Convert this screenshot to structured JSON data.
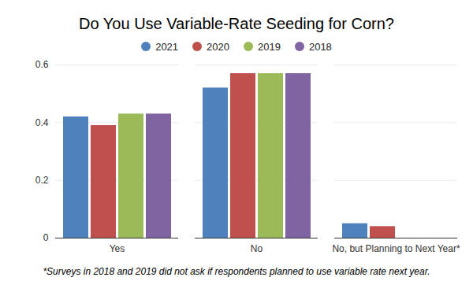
{
  "chart_data": {
    "type": "bar",
    "title": "Do You Use Variable-Rate Seeding for Corn?",
    "categories": [
      "Yes",
      "No",
      "No, but Planning to Next Year*"
    ],
    "series": [
      {
        "name": "2021",
        "color": "#4f81bd",
        "values": [
          0.42,
          0.52,
          0.05
        ]
      },
      {
        "name": "2020",
        "color": "#c0504d",
        "values": [
          0.39,
          0.57,
          0.04
        ]
      },
      {
        "name": "2019",
        "color": "#9bbb59",
        "values": [
          0.43,
          0.57,
          null
        ]
      },
      {
        "name": "2018",
        "color": "#8064a2",
        "values": [
          0.43,
          0.57,
          null
        ]
      }
    ],
    "ylim": [
      0,
      0.6
    ],
    "yticks": [
      0,
      0.2,
      0.4,
      0.6
    ],
    "grid": true,
    "legend": "top",
    "annotation": "*Surveys in 2018 and 2019 did not ask if respondents planned to use variable rate next year."
  }
}
